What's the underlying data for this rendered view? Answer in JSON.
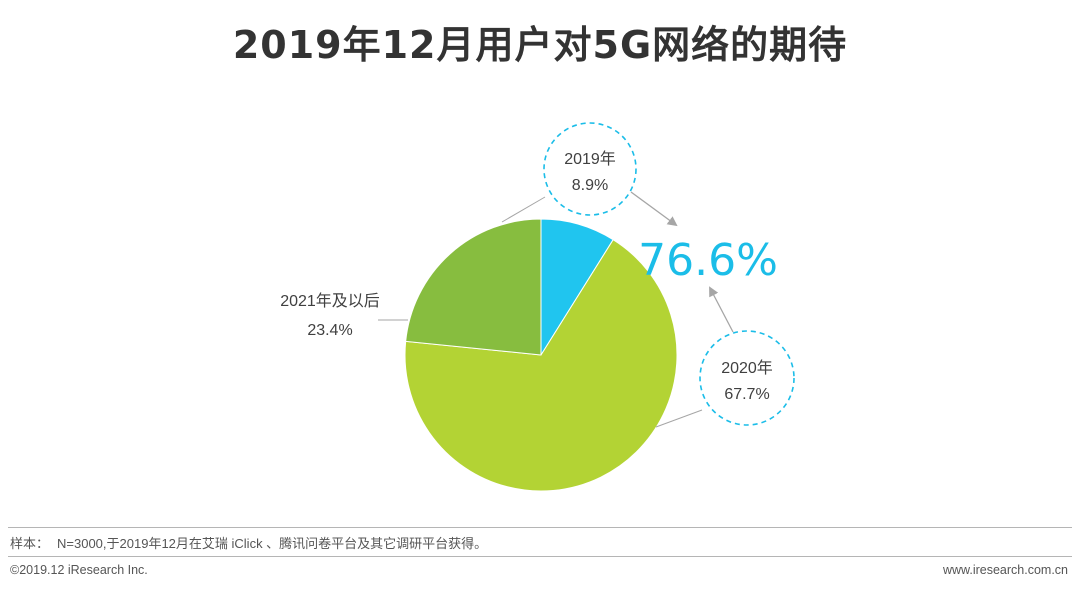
{
  "chart_data": {
    "type": "pie",
    "title": "2019年12月用户对5G网络的期待",
    "slices": [
      {
        "label": "2019年",
        "value": 8.9,
        "value_text": "8.9%",
        "color": "#20c5ef"
      },
      {
        "label": "2020年",
        "value": 67.7,
        "value_text": "67.7%",
        "color": "#b3d334"
      },
      {
        "label": "2021年及以后",
        "value": 23.4,
        "value_text": "23.4%",
        "color": "#87bd3f"
      }
    ],
    "highlight": {
      "value": 76.6,
      "text": "76.6%",
      "color": "#1bbde8"
    },
    "highlight_sum_of": [
      "2019年",
      "2020年"
    ]
  },
  "footer": {
    "note_label": "样本：",
    "note_text": "N=3000,于2019年12月在艾瑞 iClick 、腾讯问卷平台及其它调研平台获得。",
    "copyright": "©2019.12 iResearch Inc.",
    "website": "www.iresearch.com.cn"
  },
  "colors": {
    "accent_circle": "#1bbde8",
    "arrow": "#a6a6a6",
    "leader_line": "#a6a6a6"
  }
}
